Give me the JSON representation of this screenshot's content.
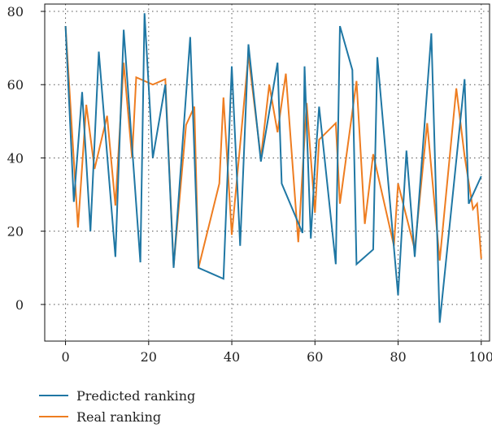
{
  "chart_data": {
    "type": "line",
    "xlim": [
      -5,
      102
    ],
    "ylim": [
      -10,
      82
    ],
    "xticks": [
      0,
      20,
      40,
      60,
      80,
      100
    ],
    "yticks": [
      0,
      20,
      40,
      60,
      80
    ],
    "grid": true,
    "legend_position": "bottom-left",
    "series": [
      {
        "name": "Predicted ranking",
        "color": "#1f77a4",
        "points": [
          [
            0,
            76
          ],
          [
            2,
            28
          ],
          [
            4,
            58
          ],
          [
            6,
            20
          ],
          [
            8,
            69
          ],
          [
            12,
            13
          ],
          [
            14,
            75
          ],
          [
            18,
            11.5
          ],
          [
            19,
            79.5
          ],
          [
            21,
            40
          ],
          [
            24,
            60
          ],
          [
            26,
            10
          ],
          [
            30,
            73
          ],
          [
            32,
            10
          ],
          [
            38,
            7
          ],
          [
            40,
            65
          ],
          [
            42,
            16
          ],
          [
            44,
            71
          ],
          [
            47,
            39
          ],
          [
            51,
            66
          ],
          [
            52,
            33
          ],
          [
            57,
            19.5
          ],
          [
            57.5,
            65
          ],
          [
            59,
            18
          ],
          [
            60,
            38
          ],
          [
            61,
            54
          ],
          [
            65,
            11
          ],
          [
            66,
            76
          ],
          [
            69,
            64
          ],
          [
            70,
            11
          ],
          [
            74,
            15
          ],
          [
            75,
            67.5
          ],
          [
            80,
            2.5
          ],
          [
            82,
            42
          ],
          [
            84,
            13
          ],
          [
            88,
            74
          ],
          [
            90,
            -5
          ],
          [
            96,
            61.5
          ],
          [
            97,
            27.5
          ],
          [
            100,
            35
          ]
        ]
      },
      {
        "name": "Real ranking",
        "color": "#ee7d21",
        "points": [
          [
            0,
            76
          ],
          [
            3,
            21
          ],
          [
            5,
            54.5
          ],
          [
            7,
            37
          ],
          [
            10,
            51.5
          ],
          [
            12,
            27
          ],
          [
            14,
            66
          ],
          [
            16,
            40
          ],
          [
            17,
            62
          ],
          [
            21,
            60
          ],
          [
            24,
            61.5
          ],
          [
            26,
            10.5
          ],
          [
            29,
            49
          ],
          [
            31,
            54
          ],
          [
            32,
            10
          ],
          [
            37,
            33
          ],
          [
            38,
            56.5
          ],
          [
            40,
            19
          ],
          [
            44,
            68
          ],
          [
            47,
            40
          ],
          [
            49,
            60
          ],
          [
            51,
            47
          ],
          [
            53,
            63
          ],
          [
            56,
            17
          ],
          [
            58,
            55
          ],
          [
            60,
            25
          ],
          [
            61,
            45
          ],
          [
            65,
            49.5
          ],
          [
            66,
            27.5
          ],
          [
            70,
            61
          ],
          [
            72,
            22
          ],
          [
            74,
            41
          ],
          [
            79,
            16
          ],
          [
            80,
            33
          ],
          [
            84,
            15
          ],
          [
            87,
            49.5
          ],
          [
            90,
            12
          ],
          [
            94,
            59
          ],
          [
            96,
            40.5
          ],
          [
            98,
            26
          ],
          [
            99,
            27.5
          ],
          [
            100,
            12.5
          ]
        ]
      }
    ]
  },
  "legend": {
    "items": [
      {
        "label": "Predicted ranking",
        "color": "#1f77a4"
      },
      {
        "label": "Real ranking",
        "color": "#ee7d21"
      }
    ]
  }
}
